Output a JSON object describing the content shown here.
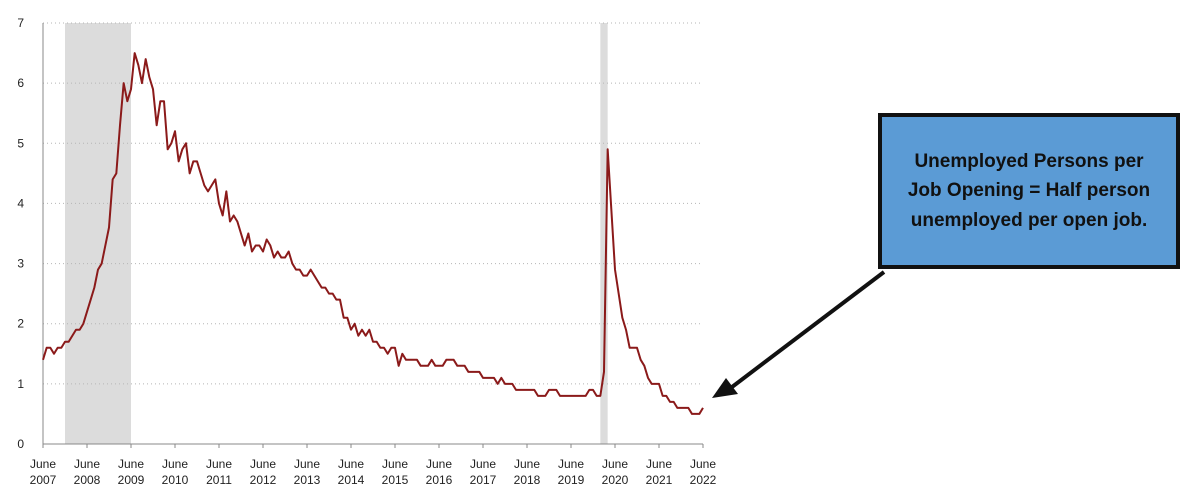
{
  "chart_data": {
    "type": "line",
    "title": "",
    "xlabel": "",
    "ylabel": "",
    "ylim": [
      0,
      7
    ],
    "xlim": [
      "2007-06",
      "2022-06"
    ],
    "y_ticks": [
      "0",
      "1",
      "2",
      "3",
      "4",
      "5",
      "6",
      "7"
    ],
    "x_ticks": [
      {
        "month": "June",
        "year": "2007"
      },
      {
        "month": "June",
        "year": "2008"
      },
      {
        "month": "June",
        "year": "2009"
      },
      {
        "month": "June",
        "year": "2010"
      },
      {
        "month": "June",
        "year": "2011"
      },
      {
        "month": "June",
        "year": "2012"
      },
      {
        "month": "June",
        "year": "2013"
      },
      {
        "month": "June",
        "year": "2014"
      },
      {
        "month": "June",
        "year": "2015"
      },
      {
        "month": "June",
        "year": "2016"
      },
      {
        "month": "June",
        "year": "2017"
      },
      {
        "month": "June",
        "year": "2018"
      },
      {
        "month": "June",
        "year": "2019"
      },
      {
        "month": "June",
        "year": "2020"
      },
      {
        "month": "June",
        "year": "2021"
      },
      {
        "month": "June",
        "year": "2022"
      }
    ],
    "grid": true,
    "recessions": [
      {
        "start": "2007-12",
        "end": "2009-06"
      },
      {
        "start": "2020-02",
        "end": "2020-04"
      }
    ],
    "series": [
      {
        "color": "#8b1a1a",
        "points": [
          [
            "2007-06",
            1.4
          ],
          [
            "2007-07",
            1.6
          ],
          [
            "2007-08",
            1.6
          ],
          [
            "2007-09",
            1.5
          ],
          [
            "2007-10",
            1.6
          ],
          [
            "2007-11",
            1.6
          ],
          [
            "2007-12",
            1.7
          ],
          [
            "2008-01",
            1.7
          ],
          [
            "2008-02",
            1.8
          ],
          [
            "2008-03",
            1.9
          ],
          [
            "2008-04",
            1.9
          ],
          [
            "2008-05",
            2.0
          ],
          [
            "2008-06",
            2.2
          ],
          [
            "2008-07",
            2.4
          ],
          [
            "2008-08",
            2.6
          ],
          [
            "2008-09",
            2.9
          ],
          [
            "2008-10",
            3.0
          ],
          [
            "2008-11",
            3.3
          ],
          [
            "2008-12",
            3.6
          ],
          [
            "2009-01",
            4.4
          ],
          [
            "2009-02",
            4.5
          ],
          [
            "2009-03",
            5.3
          ],
          [
            "2009-04",
            6.0
          ],
          [
            "2009-05",
            5.7
          ],
          [
            "2009-06",
            5.9
          ],
          [
            "2009-07",
            6.5
          ],
          [
            "2009-08",
            6.3
          ],
          [
            "2009-09",
            6.0
          ],
          [
            "2009-10",
            6.4
          ],
          [
            "2009-11",
            6.1
          ],
          [
            "2009-12",
            5.9
          ],
          [
            "2010-01",
            5.3
          ],
          [
            "2010-02",
            5.7
          ],
          [
            "2010-03",
            5.7
          ],
          [
            "2010-04",
            4.9
          ],
          [
            "2010-05",
            5.0
          ],
          [
            "2010-06",
            5.2
          ],
          [
            "2010-07",
            4.7
          ],
          [
            "2010-08",
            4.9
          ],
          [
            "2010-09",
            5.0
          ],
          [
            "2010-10",
            4.5
          ],
          [
            "2010-11",
            4.7
          ],
          [
            "2010-12",
            4.7
          ],
          [
            "2011-01",
            4.5
          ],
          [
            "2011-02",
            4.3
          ],
          [
            "2011-03",
            4.2
          ],
          [
            "2011-04",
            4.3
          ],
          [
            "2011-05",
            4.4
          ],
          [
            "2011-06",
            4.0
          ],
          [
            "2011-07",
            3.8
          ],
          [
            "2011-08",
            4.2
          ],
          [
            "2011-09",
            3.7
          ],
          [
            "2011-10",
            3.8
          ],
          [
            "2011-11",
            3.7
          ],
          [
            "2011-12",
            3.5
          ],
          [
            "2012-01",
            3.3
          ],
          [
            "2012-02",
            3.5
          ],
          [
            "2012-03",
            3.2
          ],
          [
            "2012-04",
            3.3
          ],
          [
            "2012-05",
            3.3
          ],
          [
            "2012-06",
            3.2
          ],
          [
            "2012-07",
            3.4
          ],
          [
            "2012-08",
            3.3
          ],
          [
            "2012-09",
            3.1
          ],
          [
            "2012-10",
            3.2
          ],
          [
            "2012-11",
            3.1
          ],
          [
            "2012-12",
            3.1
          ],
          [
            "2013-01",
            3.2
          ],
          [
            "2013-02",
            3.0
          ],
          [
            "2013-03",
            2.9
          ],
          [
            "2013-04",
            2.9
          ],
          [
            "2013-05",
            2.8
          ],
          [
            "2013-06",
            2.8
          ],
          [
            "2013-07",
            2.9
          ],
          [
            "2013-08",
            2.8
          ],
          [
            "2013-09",
            2.7
          ],
          [
            "2013-10",
            2.6
          ],
          [
            "2013-11",
            2.6
          ],
          [
            "2013-12",
            2.5
          ],
          [
            "2014-01",
            2.5
          ],
          [
            "2014-02",
            2.4
          ],
          [
            "2014-03",
            2.4
          ],
          [
            "2014-04",
            2.1
          ],
          [
            "2014-05",
            2.1
          ],
          [
            "2014-06",
            1.9
          ],
          [
            "2014-07",
            2.0
          ],
          [
            "2014-08",
            1.8
          ],
          [
            "2014-09",
            1.9
          ],
          [
            "2014-10",
            1.8
          ],
          [
            "2014-11",
            1.9
          ],
          [
            "2014-12",
            1.7
          ],
          [
            "2015-01",
            1.7
          ],
          [
            "2015-02",
            1.6
          ],
          [
            "2015-03",
            1.6
          ],
          [
            "2015-04",
            1.5
          ],
          [
            "2015-05",
            1.6
          ],
          [
            "2015-06",
            1.6
          ],
          [
            "2015-07",
            1.3
          ],
          [
            "2015-08",
            1.5
          ],
          [
            "2015-09",
            1.4
          ],
          [
            "2015-10",
            1.4
          ],
          [
            "2015-11",
            1.4
          ],
          [
            "2015-12",
            1.4
          ],
          [
            "2016-01",
            1.3
          ],
          [
            "2016-02",
            1.3
          ],
          [
            "2016-03",
            1.3
          ],
          [
            "2016-04",
            1.4
          ],
          [
            "2016-05",
            1.3
          ],
          [
            "2016-06",
            1.3
          ],
          [
            "2016-07",
            1.3
          ],
          [
            "2016-08",
            1.4
          ],
          [
            "2016-09",
            1.4
          ],
          [
            "2016-10",
            1.4
          ],
          [
            "2016-11",
            1.3
          ],
          [
            "2016-12",
            1.3
          ],
          [
            "2017-01",
            1.3
          ],
          [
            "2017-02",
            1.2
          ],
          [
            "2017-03",
            1.2
          ],
          [
            "2017-04",
            1.2
          ],
          [
            "2017-05",
            1.2
          ],
          [
            "2017-06",
            1.1
          ],
          [
            "2017-07",
            1.1
          ],
          [
            "2017-08",
            1.1
          ],
          [
            "2017-09",
            1.1
          ],
          [
            "2017-10",
            1.0
          ],
          [
            "2017-11",
            1.1
          ],
          [
            "2017-12",
            1.0
          ],
          [
            "2018-01",
            1.0
          ],
          [
            "2018-02",
            1.0
          ],
          [
            "2018-03",
            0.9
          ],
          [
            "2018-04",
            0.9
          ],
          [
            "2018-05",
            0.9
          ],
          [
            "2018-06",
            0.9
          ],
          [
            "2018-07",
            0.9
          ],
          [
            "2018-08",
            0.9
          ],
          [
            "2018-09",
            0.8
          ],
          [
            "2018-10",
            0.8
          ],
          [
            "2018-11",
            0.8
          ],
          [
            "2018-12",
            0.9
          ],
          [
            "2019-01",
            0.9
          ],
          [
            "2019-02",
            0.9
          ],
          [
            "2019-03",
            0.8
          ],
          [
            "2019-04",
            0.8
          ],
          [
            "2019-05",
            0.8
          ],
          [
            "2019-06",
            0.8
          ],
          [
            "2019-07",
            0.8
          ],
          [
            "2019-08",
            0.8
          ],
          [
            "2019-09",
            0.8
          ],
          [
            "2019-10",
            0.8
          ],
          [
            "2019-11",
            0.9
          ],
          [
            "2019-12",
            0.9
          ],
          [
            "2020-01",
            0.8
          ],
          [
            "2020-02",
            0.8
          ],
          [
            "2020-03",
            1.2
          ],
          [
            "2020-04",
            4.9
          ],
          [
            "2020-05",
            3.9
          ],
          [
            "2020-06",
            2.9
          ],
          [
            "2020-07",
            2.5
          ],
          [
            "2020-08",
            2.1
          ],
          [
            "2020-09",
            1.9
          ],
          [
            "2020-10",
            1.6
          ],
          [
            "2020-11",
            1.6
          ],
          [
            "2020-12",
            1.6
          ],
          [
            "2021-01",
            1.4
          ],
          [
            "2021-02",
            1.3
          ],
          [
            "2021-03",
            1.1
          ],
          [
            "2021-04",
            1.0
          ],
          [
            "2021-05",
            1.0
          ],
          [
            "2021-06",
            1.0
          ],
          [
            "2021-07",
            0.8
          ],
          [
            "2021-08",
            0.8
          ],
          [
            "2021-09",
            0.7
          ],
          [
            "2021-10",
            0.7
          ],
          [
            "2021-11",
            0.6
          ],
          [
            "2021-12",
            0.6
          ],
          [
            "2022-01",
            0.6
          ],
          [
            "2022-02",
            0.6
          ],
          [
            "2022-03",
            0.5
          ],
          [
            "2022-04",
            0.5
          ],
          [
            "2022-05",
            0.5
          ],
          [
            "2022-06",
            0.6
          ]
        ]
      }
    ]
  },
  "callout": {
    "text": "Unemployed Persons per Job Opening = Half person unemployed per open job."
  },
  "colors": {
    "line": "#8b1a1a",
    "recession": "#dcdcdc",
    "callout_fill": "#5b9bd5",
    "callout_border": "#111111"
  }
}
